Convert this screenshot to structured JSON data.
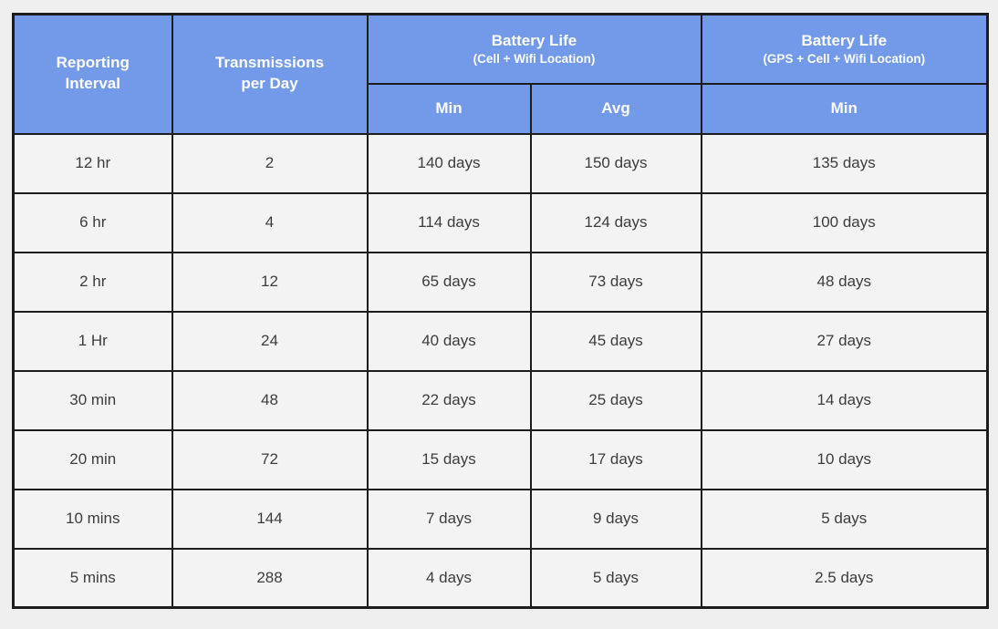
{
  "chart_data": {
    "type": "table",
    "header": {
      "reporting_interval": "Reporting Interval",
      "transmissions_per_day": "Transmissions per Day",
      "battery_cell_wifi": {
        "title": "Battery Life",
        "subtitle": "(Cell + Wifi Location)",
        "sub_columns": {
          "min": "Min",
          "avg": "Avg"
        }
      },
      "battery_gps_cell_wifi": {
        "title": "Battery Life",
        "subtitle": "(GPS + Cell + Wifi Location)",
        "sub_columns": {
          "min": "Min"
        }
      }
    },
    "rows": [
      {
        "interval": "12 hr",
        "transmissions": "2",
        "cell_wifi_min": "140 days",
        "cell_wifi_avg": "150 days",
        "gps_min": "135 days"
      },
      {
        "interval": "6 hr",
        "transmissions": "4",
        "cell_wifi_min": "114 days",
        "cell_wifi_avg": "124 days",
        "gps_min": "100 days"
      },
      {
        "interval": "2 hr",
        "transmissions": "12",
        "cell_wifi_min": "65 days",
        "cell_wifi_avg": "73 days",
        "gps_min": "48 days"
      },
      {
        "interval": "1 Hr",
        "transmissions": "24",
        "cell_wifi_min": "40 days",
        "cell_wifi_avg": "45 days",
        "gps_min": "27 days"
      },
      {
        "interval": "30 min",
        "transmissions": "48",
        "cell_wifi_min": "22 days",
        "cell_wifi_avg": "25 days",
        "gps_min": "14 days"
      },
      {
        "interval": "20 min",
        "transmissions": "72",
        "cell_wifi_min": "15 days",
        "cell_wifi_avg": "17 days",
        "gps_min": "10 days"
      },
      {
        "interval": "10 mins",
        "transmissions": "144",
        "cell_wifi_min": "7 days",
        "cell_wifi_avg": "9 days",
        "gps_min": "5 days"
      },
      {
        "interval": "5 mins",
        "transmissions": "288",
        "cell_wifi_min": "4 days",
        "cell_wifi_avg": "5 days",
        "gps_min": "2.5 days"
      }
    ]
  },
  "colors": {
    "header_bg": "#739ae9",
    "header_text": "#fdfdfd",
    "cell_bg": "#f4f3f4",
    "cell_text": "#3c3c3c",
    "border": "#1c1c1c",
    "page_bg": "#f0eff0"
  }
}
